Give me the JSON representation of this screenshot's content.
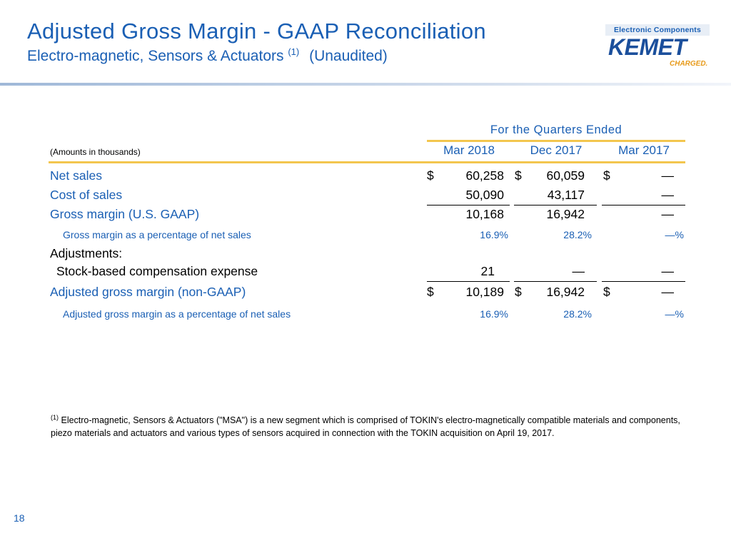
{
  "title": "Adjusted Gross Margin - GAAP Reconciliation",
  "subtitle": {
    "main": "Electro-magnetic, Sensors & Actuators",
    "footnote_ref": "(1)",
    "suffix": "(Unaudited)"
  },
  "logo": {
    "tagline": "Electronic Components",
    "name": "KEMET",
    "slogan": "CHARGED."
  },
  "table": {
    "period_header": "For the Quarters Ended",
    "amounts_note": "(Amounts in thousands)",
    "columns": [
      "Mar 2018",
      "Dec 2017",
      "Mar 2017"
    ],
    "rows": {
      "net_sales": {
        "label": "Net sales",
        "values": [
          "60,258",
          "60,059",
          "—"
        ],
        "currency": "$"
      },
      "cost_of_sales": {
        "label": "Cost of sales",
        "values": [
          "50,090",
          "43,117",
          "—"
        ]
      },
      "gross_margin": {
        "label": "Gross margin (U.S. GAAP)",
        "values": [
          "10,168",
          "16,942",
          "—"
        ]
      },
      "gm_pct": {
        "label": "Gross margin as a percentage of net sales",
        "values": [
          "16.9%",
          "28.2%",
          "—%"
        ]
      },
      "adjustments": {
        "label": "Adjustments:"
      },
      "stock_comp": {
        "label": "Stock-based compensation expense",
        "values": [
          "21",
          "—",
          "—"
        ]
      },
      "adj_gross_margin": {
        "label": "Adjusted gross margin (non-GAAP)",
        "values": [
          "10,189",
          "16,942",
          "—"
        ],
        "currency": "$"
      },
      "adj_gm_pct": {
        "label": "Adjusted gross margin as a percentage of net sales",
        "values": [
          "16.9%",
          "28.2%",
          "—%"
        ]
      }
    }
  },
  "footnote": {
    "marker": "(1)",
    "text": "Electro-magnetic, Sensors & Actuators (\"MSA\") is a new segment which is comprised of TOKIN's electro-magnetically compatible materials and components, piezo materials and actuators and various types of sensors acquired in connection with the TOKIN acquisition on April 19, 2017."
  },
  "page_number": "18",
  "colors": {
    "accent_blue": "#1a5fb4",
    "gold": "#f3c64e",
    "logo_orange": "#e79a1a"
  }
}
